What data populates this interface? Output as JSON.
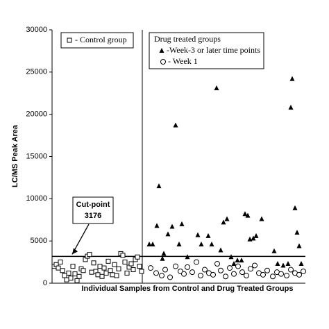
{
  "chart_data": {
    "type": "scatter",
    "ylabel": "LC/MS Peak Area",
    "xlabel": "Individual Samples from Control and Drug Treated Groups",
    "xlim": [
      0,
      365
    ],
    "ylim": [
      0,
      30000
    ],
    "yticks": [
      0,
      5000,
      10000,
      15000,
      20000,
      25000,
      30000
    ],
    "divider_x": 130,
    "annotation": {
      "text": "Cut-point",
      "value": 3176
    },
    "legend_title": "Drug treated groups",
    "series": [
      {
        "name": "- Control group",
        "marker": "square",
        "color": "#000000",
        "x": [
          3,
          6,
          9,
          12,
          15,
          18,
          21,
          24,
          27,
          30,
          33,
          36,
          39,
          42,
          45,
          48,
          51,
          54,
          57,
          60,
          63,
          66,
          69,
          72,
          75,
          78,
          81,
          84,
          87,
          90,
          93,
          96,
          99,
          102,
          105,
          108,
          111,
          114,
          117,
          120,
          123,
          126,
          129
        ],
        "values": [
          2000,
          2200,
          1800,
          2500,
          1500,
          900,
          400,
          1200,
          600,
          2000,
          1100,
          300,
          800,
          1700,
          1500,
          2800,
          3200,
          3400,
          1300,
          2400,
          1400,
          1000,
          2000,
          800,
          1800,
          1200,
          2600,
          1500,
          1000,
          2200,
          900,
          1700,
          3500,
          3300,
          2500,
          1200,
          1900,
          2300,
          1600,
          2800,
          3100,
          2000,
          1400
        ]
      },
      {
        "name": "-Week-3 or later time points",
        "marker": "triangle",
        "color": "#000000",
        "x": [
          140,
          145,
          151,
          154,
          159,
          161,
          167,
          173,
          178,
          183,
          187,
          195,
          210,
          215,
          225,
          230,
          237,
          243,
          247,
          252,
          258,
          262,
          267,
          273,
          278,
          282,
          285,
          290,
          294,
          302,
          320,
          325,
          333,
          340,
          344,
          346,
          350,
          353,
          356,
          359
        ],
        "values": [
          4600,
          4600,
          6800,
          11500,
          2900,
          3500,
          5800,
          6700,
          18700,
          4600,
          7000,
          3100,
          5700,
          4600,
          5600,
          4600,
          23100,
          3900,
          7200,
          7600,
          3100,
          2300,
          2700,
          2700,
          8200,
          8000,
          5200,
          5300,
          5600,
          7600,
          3800,
          2300,
          2100,
          2300,
          20800,
          24200,
          8900,
          6000,
          4400,
          2300
        ]
      },
      {
        "name": "-   Week 1",
        "marker": "circle",
        "color": "#000000",
        "x": [
          142,
          150,
          158,
          163,
          170,
          178,
          185,
          190,
          195,
          202,
          208,
          214,
          220,
          226,
          232,
          238,
          243,
          250,
          256,
          262,
          268,
          274,
          280,
          286,
          292,
          298,
          304,
          310,
          318,
          324,
          330,
          338,
          344,
          350,
          356,
          362
        ],
        "values": [
          1800,
          1200,
          900,
          1600,
          700,
          2000,
          1400,
          1100,
          1900,
          1300,
          2500,
          900,
          1600,
          1200,
          1000,
          2300,
          1500,
          800,
          1800,
          1100,
          2000,
          1300,
          900,
          1700,
          2100,
          1200,
          1000,
          1500,
          800,
          1300,
          1100,
          900,
          1600,
          1200,
          1000,
          1400
        ]
      }
    ]
  }
}
